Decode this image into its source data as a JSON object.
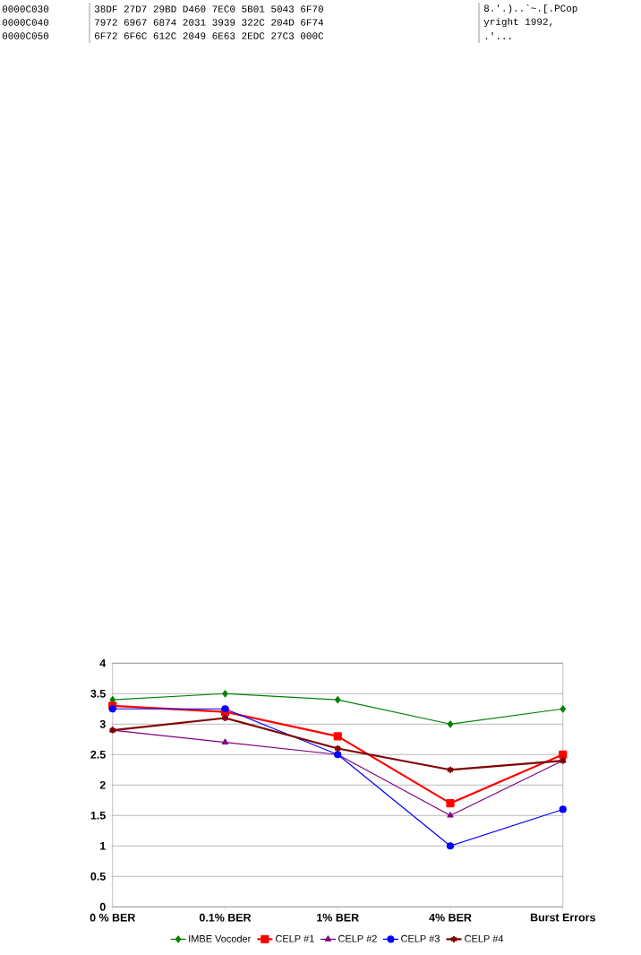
{
  "chart_data": {
    "type": "line",
    "categories": [
      "0 %  BER",
      "0.1% BER",
      "1% BER",
      "4% BER",
      "Burst Errors"
    ],
    "series": [
      {
        "name": "IMBE Vocoder",
        "color": "#008000",
        "marker": "diamond",
        "values": [
          3.4,
          3.5,
          3.4,
          3.0,
          3.25
        ]
      },
      {
        "name": "CELP #1",
        "color": "#ff0000",
        "marker": "square",
        "values": [
          3.3,
          3.2,
          2.8,
          1.7,
          2.5
        ]
      },
      {
        "name": "CELP #2",
        "color": "#800080",
        "marker": "triangle",
        "values": [
          2.9,
          2.7,
          2.5,
          1.5,
          2.4
        ]
      },
      {
        "name": "CELP #3",
        "color": "#0000ff",
        "marker": "circle",
        "values": [
          3.25,
          3.25,
          2.5,
          1.0,
          1.6
        ]
      },
      {
        "name": "CELP #4",
        "color": "#800000",
        "marker": "cross",
        "values": [
          2.9,
          3.1,
          2.6,
          2.25,
          2.4
        ]
      }
    ],
    "ylim": [
      0,
      4
    ],
    "yticks": [
      0,
      0.5,
      1,
      1.5,
      2,
      2.5,
      3,
      3.5,
      4
    ],
    "grid": "y",
    "legend": "bottom",
    "annotations": [
      "0000C030",
      "38DF 27D7 29BD D460 7EC0 5B01 5043 6F70",
      "8.'.)..`~.[.PCop",
      "0000C040",
      "7972 6967 6874 2031 3939 322C 204D 6F74",
      "yright 1992,",
      "0000C050",
      "6F72 6F6C 612C 2049 6E63 2EDC 27C3 000C",
      ".'..."
    ]
  }
}
